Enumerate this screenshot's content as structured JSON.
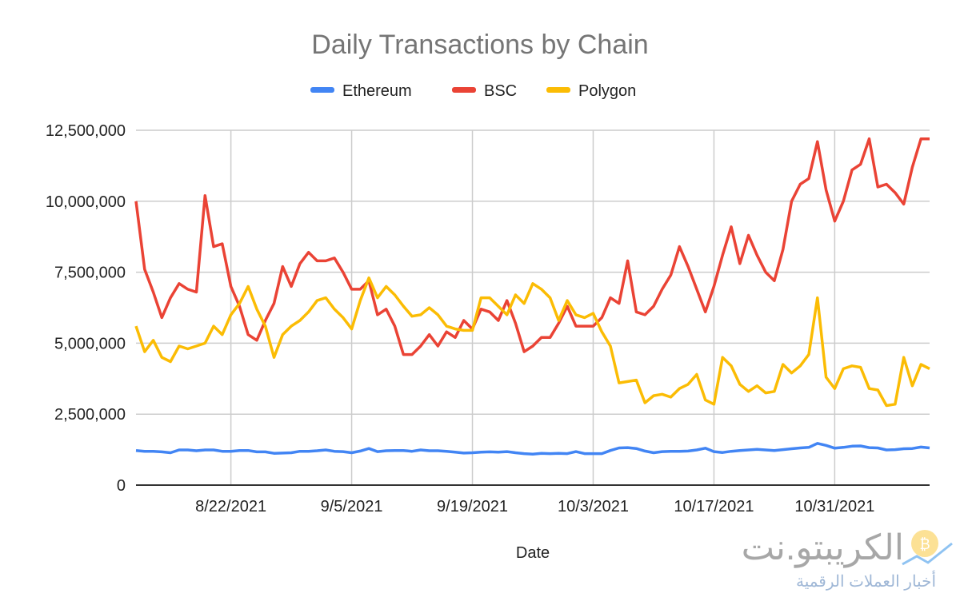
{
  "chart_data": {
    "type": "line",
    "title": "Daily Transactions by Chain",
    "xlabel": "Date",
    "ylabel": "",
    "x_start": "2021-08-11",
    "x_step_days": 1,
    "x_tick_labels": [
      "8/22/2021",
      "9/5/2021",
      "9/19/2021",
      "10/3/2021",
      "10/17/2021",
      "10/31/2021"
    ],
    "x_tick_index": [
      11,
      25,
      39,
      53,
      67,
      81
    ],
    "y_tick_labels": [
      "0",
      "2,500,000",
      "5,000,000",
      "7,500,000",
      "10,000,000",
      "12,500,000"
    ],
    "y_ticks": [
      0,
      2500000,
      5000000,
      7500000,
      10000000,
      12500000
    ],
    "ylim": [
      0,
      12500000
    ],
    "grid": true,
    "legend_position": "top",
    "value_unit_multiplier": 1000000,
    "series": [
      {
        "name": "Ethereum",
        "color": "#4285f4",
        "values": [
          1.22,
          1.19,
          1.19,
          1.17,
          1.14,
          1.24,
          1.24,
          1.21,
          1.24,
          1.24,
          1.19,
          1.19,
          1.22,
          1.22,
          1.17,
          1.17,
          1.12,
          1.13,
          1.14,
          1.19,
          1.19,
          1.21,
          1.24,
          1.19,
          1.18,
          1.14,
          1.2,
          1.29,
          1.18,
          1.21,
          1.22,
          1.22,
          1.19,
          1.24,
          1.21,
          1.21,
          1.19,
          1.16,
          1.13,
          1.14,
          1.16,
          1.17,
          1.16,
          1.18,
          1.14,
          1.11,
          1.09,
          1.12,
          1.11,
          1.12,
          1.11,
          1.18,
          1.11,
          1.11,
          1.11,
          1.22,
          1.31,
          1.32,
          1.29,
          1.2,
          1.14,
          1.18,
          1.19,
          1.19,
          1.2,
          1.24,
          1.3,
          1.18,
          1.15,
          1.19,
          1.22,
          1.24,
          1.26,
          1.24,
          1.22,
          1.25,
          1.28,
          1.31,
          1.33,
          1.47,
          1.4,
          1.3,
          1.33,
          1.37,
          1.38,
          1.32,
          1.31,
          1.24,
          1.25,
          1.28,
          1.29,
          1.34,
          1.31
        ]
      },
      {
        "name": "BSC",
        "color": "#ea4335",
        "values": [
          10.0,
          7.6,
          6.8,
          5.9,
          6.6,
          7.1,
          6.9,
          6.8,
          10.2,
          8.4,
          8.5,
          7.0,
          6.3,
          5.3,
          5.1,
          5.8,
          6.4,
          7.7,
          7.0,
          7.8,
          8.2,
          7.9,
          7.9,
          8.0,
          7.5,
          6.9,
          6.9,
          7.2,
          6.0,
          6.2,
          5.6,
          4.6,
          4.6,
          4.9,
          5.3,
          4.9,
          5.4,
          5.2,
          5.8,
          5.5,
          6.2,
          6.1,
          5.8,
          6.5,
          5.7,
          4.7,
          4.9,
          5.2,
          5.2,
          5.7,
          6.3,
          5.6,
          5.6,
          5.6,
          5.9,
          6.6,
          6.4,
          7.9,
          6.1,
          6.0,
          6.3,
          6.9,
          7.4,
          8.4,
          7.7,
          6.9,
          6.1,
          7.0,
          8.1,
          9.1,
          7.8,
          8.8,
          8.1,
          7.5,
          7.2,
          8.3,
          10.0,
          10.6,
          10.8,
          12.1,
          10.4,
          9.3,
          10.0,
          11.1,
          11.3,
          12.2,
          10.5,
          10.6,
          10.3,
          9.9,
          11.2,
          12.2,
          12.2
        ]
      },
      {
        "name": "Polygon",
        "color": "#fbbc04",
        "values": [
          5.6,
          4.7,
          5.1,
          4.5,
          4.35,
          4.9,
          4.8,
          4.9,
          5.0,
          5.6,
          5.3,
          6.0,
          6.4,
          7.0,
          6.2,
          5.6,
          4.5,
          5.3,
          5.6,
          5.8,
          6.1,
          6.5,
          6.6,
          6.2,
          5.9,
          5.5,
          6.5,
          7.3,
          6.6,
          7.0,
          6.7,
          6.3,
          5.95,
          6.0,
          6.25,
          6.0,
          5.6,
          5.5,
          5.45,
          5.45,
          6.6,
          6.6,
          6.3,
          6.0,
          6.7,
          6.4,
          7.1,
          6.9,
          6.6,
          5.8,
          6.5,
          6.0,
          5.9,
          6.05,
          5.4,
          4.9,
          3.6,
          3.65,
          3.7,
          2.9,
          3.15,
          3.2,
          3.1,
          3.4,
          3.55,
          3.9,
          3.0,
          2.85,
          4.5,
          4.2,
          3.55,
          3.3,
          3.5,
          3.25,
          3.3,
          4.25,
          3.95,
          4.2,
          4.6,
          6.6,
          3.8,
          3.4,
          4.1,
          4.2,
          4.15,
          3.4,
          3.35,
          2.8,
          2.85,
          4.5,
          3.5,
          4.25,
          4.1
        ]
      }
    ]
  },
  "watermark": {
    "brand": "الكريبتو.نت",
    "tagline": "أخبار العملات الرقمية"
  }
}
